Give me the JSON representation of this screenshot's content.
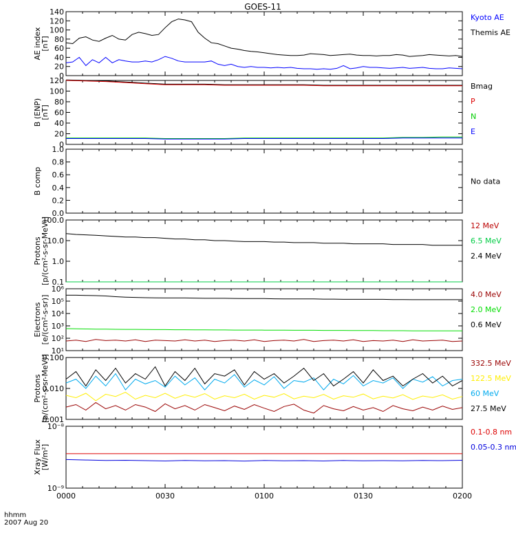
{
  "title": "GOES-11",
  "footer": {
    "time_label": "hhmm",
    "date_label": "2007 Aug 20"
  },
  "chart_data": [
    {
      "type": "line",
      "ylabel": [
        "AE index",
        "[nT]"
      ],
      "ylim": [
        0,
        140
      ],
      "yticks": [
        "0",
        "20",
        "40",
        "60",
        "80",
        "100",
        "120",
        "140"
      ],
      "yscale": "linear",
      "x": [
        0,
        2,
        4,
        6,
        8,
        10,
        12,
        14,
        16,
        18,
        20,
        22,
        24,
        26,
        28,
        30,
        32,
        34,
        36,
        38,
        40,
        42,
        44,
        46,
        48,
        50,
        52,
        54,
        56,
        58,
        60,
        62,
        64,
        66,
        68,
        70,
        72,
        74,
        76,
        78,
        80,
        82,
        84,
        86,
        88,
        90,
        92,
        94,
        96,
        98,
        100,
        102,
        104,
        106,
        108,
        110,
        112,
        114,
        116,
        118,
        120
      ],
      "series": [
        {
          "name": "Kyoto AE",
          "color": "#0000ff",
          "values": [
            28,
            30,
            40,
            22,
            35,
            28,
            40,
            28,
            35,
            32,
            30,
            30,
            32,
            30,
            35,
            42,
            38,
            32,
            30,
            30,
            30,
            30,
            32,
            25,
            22,
            25,
            20,
            18,
            20,
            18,
            18,
            17,
            18,
            17,
            18,
            16,
            15,
            15,
            14,
            15,
            14,
            16,
            22,
            15,
            17,
            20,
            18,
            18,
            17,
            16,
            17,
            18,
            16,
            17,
            18,
            16,
            15,
            15,
            17,
            16,
            15
          ]
        },
        {
          "name": "Themis AE",
          "color": "#000000",
          "values": [
            72,
            70,
            82,
            85,
            78,
            75,
            82,
            88,
            80,
            78,
            90,
            95,
            92,
            88,
            90,
            105,
            118,
            124,
            122,
            118,
            95,
            82,
            72,
            70,
            65,
            60,
            58,
            55,
            53,
            52,
            50,
            48,
            46,
            45,
            44,
            44,
            45,
            48,
            47,
            46,
            44,
            45,
            46,
            47,
            45,
            44,
            44,
            43,
            44,
            44,
            46,
            45,
            42,
            43,
            44,
            46,
            45,
            44,
            43,
            44,
            42
          ]
        }
      ],
      "legend_placement": "right"
    },
    {
      "type": "line",
      "ylabel": [
        "B (ENP)",
        "[nT]"
      ],
      "ylim": [
        0,
        120
      ],
      "yticks": [
        "0",
        "20",
        "40",
        "60",
        "80",
        "100",
        "120"
      ],
      "yscale": "linear",
      "x": [
        0,
        6,
        12,
        18,
        24,
        30,
        36,
        42,
        48,
        54,
        60,
        66,
        72,
        78,
        84,
        90,
        96,
        102,
        108,
        114,
        120
      ],
      "series": [
        {
          "name": "Bmag",
          "color": "#000000",
          "values": [
            121,
            120,
            119,
            117,
            115,
            113,
            113,
            113,
            112,
            112,
            112,
            112,
            112,
            111,
            111,
            111,
            111,
            111,
            111,
            111,
            111
          ]
        },
        {
          "name": "P",
          "color": "#dd0000",
          "values": [
            120,
            119,
            118,
            116,
            114,
            112,
            112,
            112,
            111,
            111,
            111,
            111,
            111,
            110,
            110,
            110,
            110,
            110,
            110,
            110,
            110
          ]
        },
        {
          "name": "N",
          "color": "#00cc00",
          "values": [
            12,
            12,
            12,
            12,
            12,
            11,
            11,
            11,
            11,
            12,
            12,
            12,
            12,
            12,
            12,
            12,
            12,
            13,
            13,
            14,
            14
          ]
        },
        {
          "name": "E",
          "color": "#0000ff",
          "values": [
            11,
            11,
            11,
            11,
            11,
            10,
            10,
            10,
            10,
            11,
            11,
            11,
            11,
            11,
            11,
            11,
            11,
            12,
            12,
            12,
            12
          ]
        }
      ],
      "legend_placement": "right"
    },
    {
      "type": "line",
      "ylabel": [
        "B comp"
      ],
      "ylim": [
        0,
        1
      ],
      "yticks": [
        "0.0",
        "0.2",
        "0.4",
        "0.6",
        "0.8",
        "1.0"
      ],
      "yscale": "linear",
      "x": [],
      "series": [],
      "legend": [
        "No data"
      ],
      "legend_colors": [
        "#000000"
      ],
      "legend_placement": "right"
    },
    {
      "type": "line",
      "ylabel": [
        "Protons",
        "[p/(cm²-s-sr-MeV)]"
      ],
      "ylim": [
        0.1,
        100
      ],
      "yticks": [
        "0.1",
        "1.0",
        "10.0",
        "100.0"
      ],
      "yscale": "log",
      "x": [
        0,
        3,
        6,
        9,
        12,
        15,
        18,
        21,
        24,
        27,
        30,
        33,
        36,
        39,
        42,
        45,
        48,
        51,
        54,
        57,
        60,
        63,
        66,
        69,
        72,
        75,
        78,
        81,
        84,
        87,
        90,
        93,
        96,
        99,
        102,
        105,
        108,
        111,
        114,
        117,
        120
      ],
      "series": [
        {
          "name": "12 MeV",
          "color": "#bb0000",
          "values": [
            0.1,
            0.1,
            0.1,
            0.1,
            0.1,
            0.1,
            0.1,
            0.1,
            0.1,
            0.1,
            0.1,
            0.1,
            0.1,
            0.1,
            0.1,
            0.1,
            0.1,
            0.1,
            0.1,
            0.1,
            0.1,
            0.1,
            0.1,
            0.1,
            0.1,
            0.1,
            0.1,
            0.1,
            0.1,
            0.1,
            0.1,
            0.1,
            0.1,
            0.1,
            0.1,
            0.1,
            0.1,
            0.1,
            0.1,
            0.1,
            0.1
          ]
        },
        {
          "name": "6.5 MeV",
          "color": "#00cc44",
          "values": [
            0.1,
            0.1,
            0.1,
            0.1,
            0.1,
            0.1,
            0.1,
            0.1,
            0.1,
            0.1,
            0.1,
            0.1,
            0.1,
            0.1,
            0.1,
            0.1,
            0.1,
            0.1,
            0.1,
            0.1,
            0.1,
            0.1,
            0.1,
            0.1,
            0.1,
            0.1,
            0.1,
            0.1,
            0.1,
            0.1,
            0.1,
            0.1,
            0.1,
            0.1,
            0.1,
            0.1,
            0.1,
            0.1,
            0.1,
            0.1,
            0.1
          ]
        },
        {
          "name": "2.4 MeV",
          "color": "#000000",
          "values": [
            22,
            20,
            19,
            18,
            17,
            16,
            15,
            15,
            14,
            14,
            13,
            12,
            12,
            11,
            11,
            10,
            10,
            9.5,
            9,
            9,
            9,
            8.5,
            8.5,
            8,
            8,
            8,
            7.5,
            7.5,
            7.5,
            7,
            7,
            7,
            7,
            6.5,
            6.5,
            6.5,
            6.5,
            6,
            6,
            6,
            6
          ]
        }
      ],
      "legend_placement": "right"
    },
    {
      "type": "line",
      "ylabel": [
        "Electrons",
        "[e/(cm²-s-sr)]"
      ],
      "ylim": [
        10,
        1000000
      ],
      "yticks": [
        "10¹",
        "10²",
        "10³",
        "10⁴",
        "10⁵",
        "10⁶"
      ],
      "yscale": "log",
      "x": [
        0,
        3,
        6,
        9,
        12,
        15,
        18,
        21,
        24,
        27,
        30,
        33,
        36,
        39,
        42,
        45,
        48,
        51,
        54,
        57,
        60,
        63,
        66,
        69,
        72,
        75,
        78,
        81,
        84,
        87,
        90,
        93,
        96,
        99,
        102,
        105,
        108,
        111,
        114,
        117,
        120
      ],
      "series": [
        {
          "name": "4.0 MeV",
          "color": "#990000",
          "values": [
            60,
            70,
            55,
            80,
            65,
            70,
            60,
            75,
            55,
            70,
            65,
            60,
            75,
            60,
            70,
            55,
            65,
            70,
            60,
            75,
            55,
            65,
            70,
            60,
            80,
            55,
            65,
            70,
            60,
            75,
            55,
            65,
            60,
            70,
            55,
            75,
            60,
            65,
            70,
            55,
            60
          ]
        },
        {
          "name": "2.0 MeV",
          "color": "#00dd00",
          "values": [
            600,
            580,
            560,
            550,
            540,
            530,
            520,
            520,
            510,
            500,
            500,
            490,
            490,
            480,
            480,
            470,
            470,
            460,
            460,
            460,
            450,
            450,
            450,
            440,
            440,
            440,
            430,
            430,
            430,
            420,
            420,
            420,
            410,
            410,
            410,
            400,
            400,
            400,
            400,
            400,
            400
          ]
        },
        {
          "name": "0.6 MeV",
          "color": "#000000",
          "values": [
            300000,
            300000,
            290000,
            280000,
            260000,
            230000,
            210000,
            200000,
            190000,
            185000,
            180000,
            180000,
            180000,
            175000,
            170000,
            170000,
            170000,
            165000,
            160000,
            160000,
            160000,
            155000,
            150000,
            150000,
            150000,
            150000,
            145000,
            145000,
            140000,
            140000,
            140000,
            140000,
            140000,
            135000,
            135000,
            130000,
            130000,
            130000,
            130000,
            130000,
            130000
          ]
        }
      ],
      "legend_placement": "right"
    },
    {
      "type": "line",
      "ylabel": [
        "Protons",
        "[p/(cm²-s-sr-MeV)]"
      ],
      "ylim": [
        0.001,
        0.1
      ],
      "yticks": [
        "0.001",
        "0.010",
        "0.100"
      ],
      "yscale": "log",
      "x": [
        0,
        3,
        6,
        9,
        12,
        15,
        18,
        21,
        24,
        27,
        30,
        33,
        36,
        39,
        42,
        45,
        48,
        51,
        54,
        57,
        60,
        63,
        66,
        69,
        72,
        75,
        78,
        81,
        84,
        87,
        90,
        93,
        96,
        99,
        102,
        105,
        108,
        111,
        114,
        117,
        120
      ],
      "series": [
        {
          "name": "332.5 MeV",
          "color": "#990000",
          "values": [
            0.0025,
            0.003,
            0.002,
            0.0035,
            0.0022,
            0.0028,
            0.002,
            0.003,
            0.0025,
            0.0018,
            0.0032,
            0.0022,
            0.0028,
            0.002,
            0.003,
            0.0024,
            0.0019,
            0.0027,
            0.0021,
            0.003,
            0.0023,
            0.0018,
            0.0026,
            0.0031,
            0.002,
            0.0016,
            0.0028,
            0.0022,
            0.0019,
            0.0026,
            0.002,
            0.0024,
            0.0018,
            0.0028,
            0.0022,
            0.0019,
            0.0025,
            0.002,
            0.0027,
            0.0021,
            0.0024
          ]
        },
        {
          "name": "122.5 MeV",
          "color": "#ffee00",
          "values": [
            0.006,
            0.005,
            0.007,
            0.004,
            0.0065,
            0.0055,
            0.0075,
            0.0045,
            0.006,
            0.005,
            0.007,
            0.0048,
            0.0062,
            0.0052,
            0.0068,
            0.0045,
            0.0058,
            0.005,
            0.0065,
            0.0045,
            0.006,
            0.0052,
            0.0068,
            0.0046,
            0.0056,
            0.005,
            0.0064,
            0.0045,
            0.0058,
            0.0052,
            0.0066,
            0.0046,
            0.0056,
            0.0049,
            0.0063,
            0.0044,
            0.0057,
            0.0051,
            0.0062,
            0.0045,
            0.0055
          ]
        },
        {
          "name": "60 MeV",
          "color": "#00aaee",
          "values": [
            0.015,
            0.02,
            0.01,
            0.025,
            0.012,
            0.03,
            0.009,
            0.02,
            0.014,
            0.018,
            0.011,
            0.025,
            0.013,
            0.022,
            0.009,
            0.02,
            0.015,
            0.028,
            0.011,
            0.019,
            0.013,
            0.024,
            0.01,
            0.018,
            0.016,
            0.022,
            0.009,
            0.02,
            0.014,
            0.026,
            0.012,
            0.018,
            0.015,
            0.022,
            0.01,
            0.02,
            0.016,
            0.024,
            0.012,
            0.018,
            0.02
          ]
        },
        {
          "name": "27.5 MeV",
          "color": "#000000",
          "values": [
            0.02,
            0.035,
            0.012,
            0.04,
            0.018,
            0.045,
            0.015,
            0.03,
            0.02,
            0.05,
            0.012,
            0.035,
            0.018,
            0.045,
            0.014,
            0.03,
            0.025,
            0.04,
            0.013,
            0.035,
            0.02,
            0.03,
            0.015,
            0.025,
            0.045,
            0.018,
            0.03,
            0.012,
            0.02,
            0.035,
            0.015,
            0.04,
            0.018,
            0.025,
            0.012,
            0.02,
            0.03,
            0.015,
            0.025,
            0.012,
            0.018
          ]
        }
      ],
      "legend_placement": "right"
    },
    {
      "type": "line",
      "ylabel": [
        "Xray Flux",
        "[W/m²]"
      ],
      "ylim": [
        1e-09,
        1e-08
      ],
      "yticks": [
        "10⁻⁹",
        "10⁻⁸"
      ],
      "yscale": "log",
      "x": [
        0,
        6,
        12,
        18,
        24,
        30,
        36,
        42,
        48,
        54,
        60,
        66,
        72,
        78,
        84,
        90,
        96,
        102,
        108,
        114,
        120
      ],
      "series": [
        {
          "name": "0.1-0.8 nm",
          "color": "#dd0000",
          "values": [
            3.6e-09,
            3.6e-09,
            3.6e-09,
            3.6e-09,
            3.6e-09,
            3.6e-09,
            3.6e-09,
            3.6e-09,
            3.6e-09,
            3.6e-09,
            3.6e-09,
            3.6e-09,
            3.6e-09,
            3.6e-09,
            3.6e-09,
            3.6e-09,
            3.6e-09,
            3.6e-09,
            3.6e-09,
            3.6e-09,
            3.6e-09
          ]
        },
        {
          "name": "0.05-0.3 nm",
          "color": "#0000dd",
          "values": [
            2.9e-09,
            2.85e-09,
            2.8e-09,
            2.82e-09,
            2.78e-09,
            2.75e-09,
            2.8e-09,
            2.76e-09,
            2.78e-09,
            2.74e-09,
            2.8e-09,
            2.77e-09,
            2.78e-09,
            2.75e-09,
            2.8e-09,
            2.76e-09,
            2.78e-09,
            2.76e-09,
            2.8e-09,
            2.78e-09,
            2.82e-09
          ]
        }
      ],
      "legend_placement": "right"
    }
  ],
  "xaxis": {
    "ticks": [
      0,
      30,
      60,
      90,
      120
    ],
    "tick_labels": [
      "0000",
      "0030",
      "0100",
      "0130",
      "0200"
    ],
    "xlim": [
      0,
      120
    ]
  }
}
